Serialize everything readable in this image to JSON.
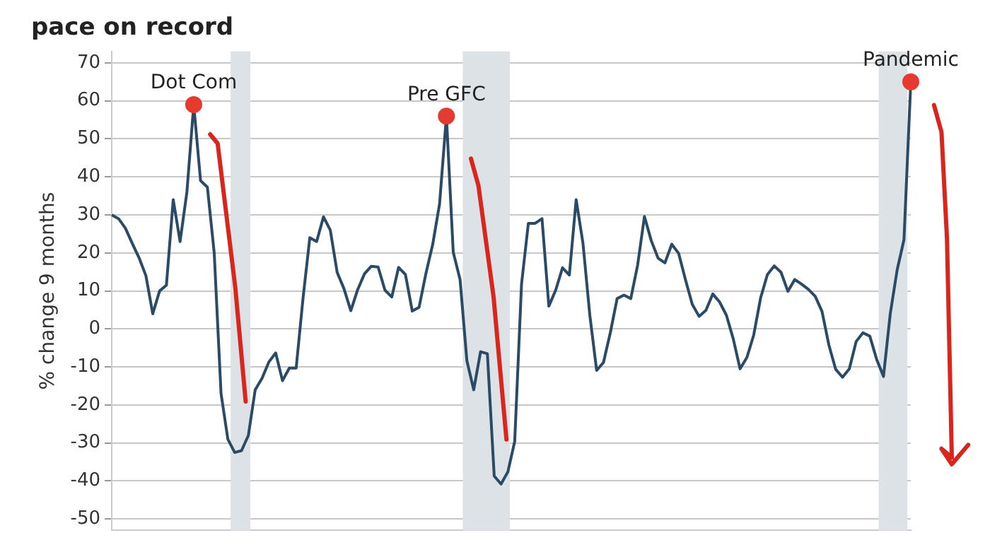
{
  "chart_data": {
    "type": "line",
    "title": "pace on record",
    "ylabel": "% change 9 months",
    "categories": [
      null,
      null,
      null,
      null,
      null,
      null,
      null,
      null,
      null,
      null,
      null,
      null,
      null,
      null,
      null,
      null,
      null,
      null,
      null,
      null,
      null,
      null,
      null,
      null,
      null,
      null,
      null,
      null,
      null,
      null,
      null,
      null,
      null,
      null,
      null,
      null,
      null,
      null,
      null,
      null,
      null,
      null,
      null,
      null,
      null,
      null,
      null,
      null,
      null,
      null,
      null,
      null,
      null,
      null,
      null,
      null,
      null,
      null,
      null,
      null,
      null,
      null,
      null,
      null,
      null,
      null,
      null,
      null,
      null,
      null,
      null,
      null,
      null,
      null,
      null,
      null,
      null,
      null,
      null,
      null,
      null,
      null,
      null,
      null,
      null,
      null,
      null,
      null,
      null,
      null,
      null,
      null,
      null,
      null,
      null,
      null,
      null,
      null,
      null,
      null,
      null,
      null,
      null,
      null,
      null,
      null,
      null,
      null,
      null,
      null,
      null,
      null,
      null,
      null,
      null,
      null,
      null,
      null
    ],
    "ylim": [
      -53,
      73
    ],
    "yticks": [
      -50,
      -40,
      -30,
      -20,
      -10,
      0,
      10,
      20,
      30,
      40,
      50,
      60,
      70
    ],
    "tick_labels": "y",
    "grid": "y",
    "legend": false,
    "series": [
      {
        "marker": "none",
        "color": "#2b4a66",
        "values": [
          30,
          29,
          26.5,
          22.5,
          18.7,
          14,
          4,
          10,
          11.5,
          34,
          23,
          36,
          59,
          39,
          37.3,
          20,
          -17,
          -29,
          -32.5,
          -32,
          -28,
          -16,
          -13,
          -8.7,
          -6.3,
          -13.6,
          -10.3,
          -10.3,
          8,
          24,
          23,
          29.5,
          26,
          14.9,
          10.6,
          4.8,
          10.3,
          14.5,
          16.5,
          16.3,
          10.2,
          8.4,
          16.2,
          14.3,
          4.7,
          5.7,
          14.6,
          22.3,
          32.9,
          56,
          20.2,
          13,
          -8.4,
          -16,
          -6,
          -6.5,
          -38.7,
          -40.8,
          -37.6,
          -29.6,
          11.8,
          27.8,
          27.8,
          29,
          6,
          10.2,
          16.1,
          14.2,
          34,
          22.5,
          3.6,
          -10.9,
          -8.8,
          -1,
          8,
          8.9,
          8,
          16.8,
          29.6,
          23.2,
          18.6,
          17.4,
          22.3,
          19.9,
          13,
          6.5,
          3.3,
          4.9,
          9.2,
          7.1,
          3.6,
          -2.6,
          -10.5,
          -7.5,
          -1.6,
          8.1,
          14.3,
          16.6,
          14.9,
          9.9,
          13,
          11.8,
          10.4,
          8.6,
          4.6,
          -4.2,
          -10.6,
          -12.7,
          -10.5,
          -3.3,
          -1,
          -1.9,
          -8,
          -12.5,
          4.1,
          15.5,
          23.5,
          65
        ]
      }
    ],
    "annotations": [
      "Dot Com",
      "Pre GFC",
      "Pandemic"
    ]
  }
}
